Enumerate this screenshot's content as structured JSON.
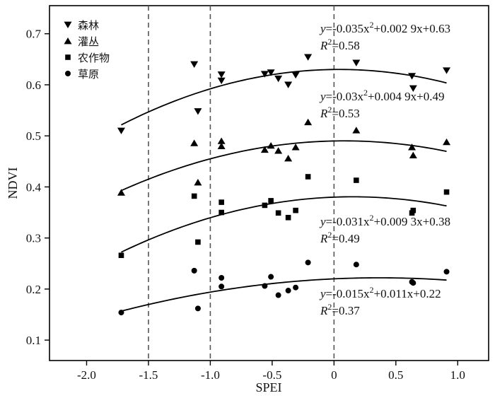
{
  "chart_data": {
    "type": "scatter",
    "xlabel": "SPEI",
    "ylabel": "NDVI",
    "xlim": [
      -2.3,
      1.25
    ],
    "ylim": [
      0.06,
      0.755
    ],
    "xticks": [
      -2.0,
      -1.5,
      -1.0,
      -0.5,
      0.0,
      0.5,
      1.0
    ],
    "xtick_labels": [
      "-2.0",
      "-1.5",
      "-1.0",
      "-0.5",
      "0",
      "0.5",
      "1.0"
    ],
    "yticks": [
      0.1,
      0.2,
      0.3,
      0.4,
      0.5,
      0.6,
      0.7
    ],
    "ytick_labels": [
      "0.1",
      "0.2",
      "0.3",
      "0.4",
      "0.5",
      "0.6",
      "0.7"
    ],
    "reference_lines_x": [
      -1.5,
      -1.0,
      0.0
    ],
    "legend_position": "top-left",
    "series": [
      {
        "name": "森林",
        "marker": "triangle-down",
        "points": [
          [
            -1.72,
            0.51
          ],
          [
            -1.13,
            0.64
          ],
          [
            -1.1,
            0.548
          ],
          [
            -0.91,
            0.62
          ],
          [
            -0.91,
            0.608
          ],
          [
            -0.56,
            0.621
          ],
          [
            -0.51,
            0.624
          ],
          [
            -0.45,
            0.612
          ],
          [
            -0.37,
            0.6
          ],
          [
            -0.31,
            0.619
          ],
          [
            -0.21,
            0.654
          ],
          [
            0.18,
            0.643
          ],
          [
            0.63,
            0.617
          ],
          [
            0.64,
            0.593
          ],
          [
            0.91,
            0.628
          ]
        ],
        "fit": {
          "a": -0.035,
          "b": 0.0029,
          "c": 0.63,
          "xrange": [
            -1.72,
            0.91
          ]
        },
        "equation": {
          "y_part": "y",
          "eq_main": "=-0.035x",
          "exp": "2",
          "eq_rest": "+0.002 9x+0.63",
          "r_part": "R",
          "r2_val": "=0.58"
        }
      },
      {
        "name": "灌丛",
        "marker": "triangle-up",
        "points": [
          [
            -1.72,
            0.389
          ],
          [
            -1.13,
            0.486
          ],
          [
            -1.1,
            0.409
          ],
          [
            -0.91,
            0.49
          ],
          [
            -0.91,
            0.48
          ],
          [
            -0.56,
            0.473
          ],
          [
            -0.51,
            0.481
          ],
          [
            -0.45,
            0.471
          ],
          [
            -0.37,
            0.456
          ],
          [
            -0.31,
            0.478
          ],
          [
            -0.21,
            0.527
          ],
          [
            0.18,
            0.511
          ],
          [
            0.63,
            0.478
          ],
          [
            0.64,
            0.462
          ],
          [
            0.91,
            0.488
          ]
        ],
        "fit": {
          "a": -0.03,
          "b": 0.0049,
          "c": 0.49,
          "xrange": [
            -1.72,
            0.91
          ]
        },
        "equation": {
          "y_part": "y",
          "eq_main": "=-0.03x",
          "exp": "2",
          "eq_rest": "+0.004 9x+0.49",
          "r_part": "R",
          "r2_val": "=0.53"
        }
      },
      {
        "name": "农作物",
        "marker": "square",
        "points": [
          [
            -1.72,
            0.266
          ],
          [
            -1.13,
            0.382
          ],
          [
            -1.1,
            0.292
          ],
          [
            -0.91,
            0.37
          ],
          [
            -0.91,
            0.35
          ],
          [
            -0.56,
            0.364
          ],
          [
            -0.51,
            0.373
          ],
          [
            -0.45,
            0.349
          ],
          [
            -0.37,
            0.34
          ],
          [
            -0.31,
            0.354
          ],
          [
            -0.21,
            0.42
          ],
          [
            0.18,
            0.413
          ],
          [
            0.63,
            0.349
          ],
          [
            0.64,
            0.354
          ],
          [
            0.91,
            0.39
          ]
        ],
        "fit": {
          "a": -0.031,
          "b": 0.0093,
          "c": 0.38,
          "xrange": [
            -1.72,
            0.91
          ]
        },
        "equation": {
          "y_part": "y",
          "eq_main": "=-0.031x",
          "exp": "2",
          "eq_rest": "+0.009 3x+0.38",
          "r_part": "R",
          "r2_val": "=0.49"
        }
      },
      {
        "name": "草原",
        "marker": "circle",
        "points": [
          [
            -1.72,
            0.154
          ],
          [
            -1.13,
            0.236
          ],
          [
            -1.1,
            0.162
          ],
          [
            -0.91,
            0.222
          ],
          [
            -0.91,
            0.205
          ],
          [
            -0.56,
            0.206
          ],
          [
            -0.51,
            0.224
          ],
          [
            -0.45,
            0.188
          ],
          [
            -0.37,
            0.197
          ],
          [
            -0.31,
            0.203
          ],
          [
            -0.21,
            0.252
          ],
          [
            0.18,
            0.248
          ],
          [
            0.63,
            0.214
          ],
          [
            0.64,
            0.212
          ],
          [
            0.91,
            0.234
          ]
        ],
        "fit": {
          "a": -0.015,
          "b": 0.011,
          "c": 0.22,
          "xrange": [
            -1.72,
            0.91
          ]
        },
        "equation": {
          "y_part": "y",
          "eq_main": "=-0.015x",
          "exp": "2",
          "eq_rest": "+0.011x+0.22",
          "r_part": "R",
          "r2_val": "=0.37"
        }
      }
    ]
  }
}
